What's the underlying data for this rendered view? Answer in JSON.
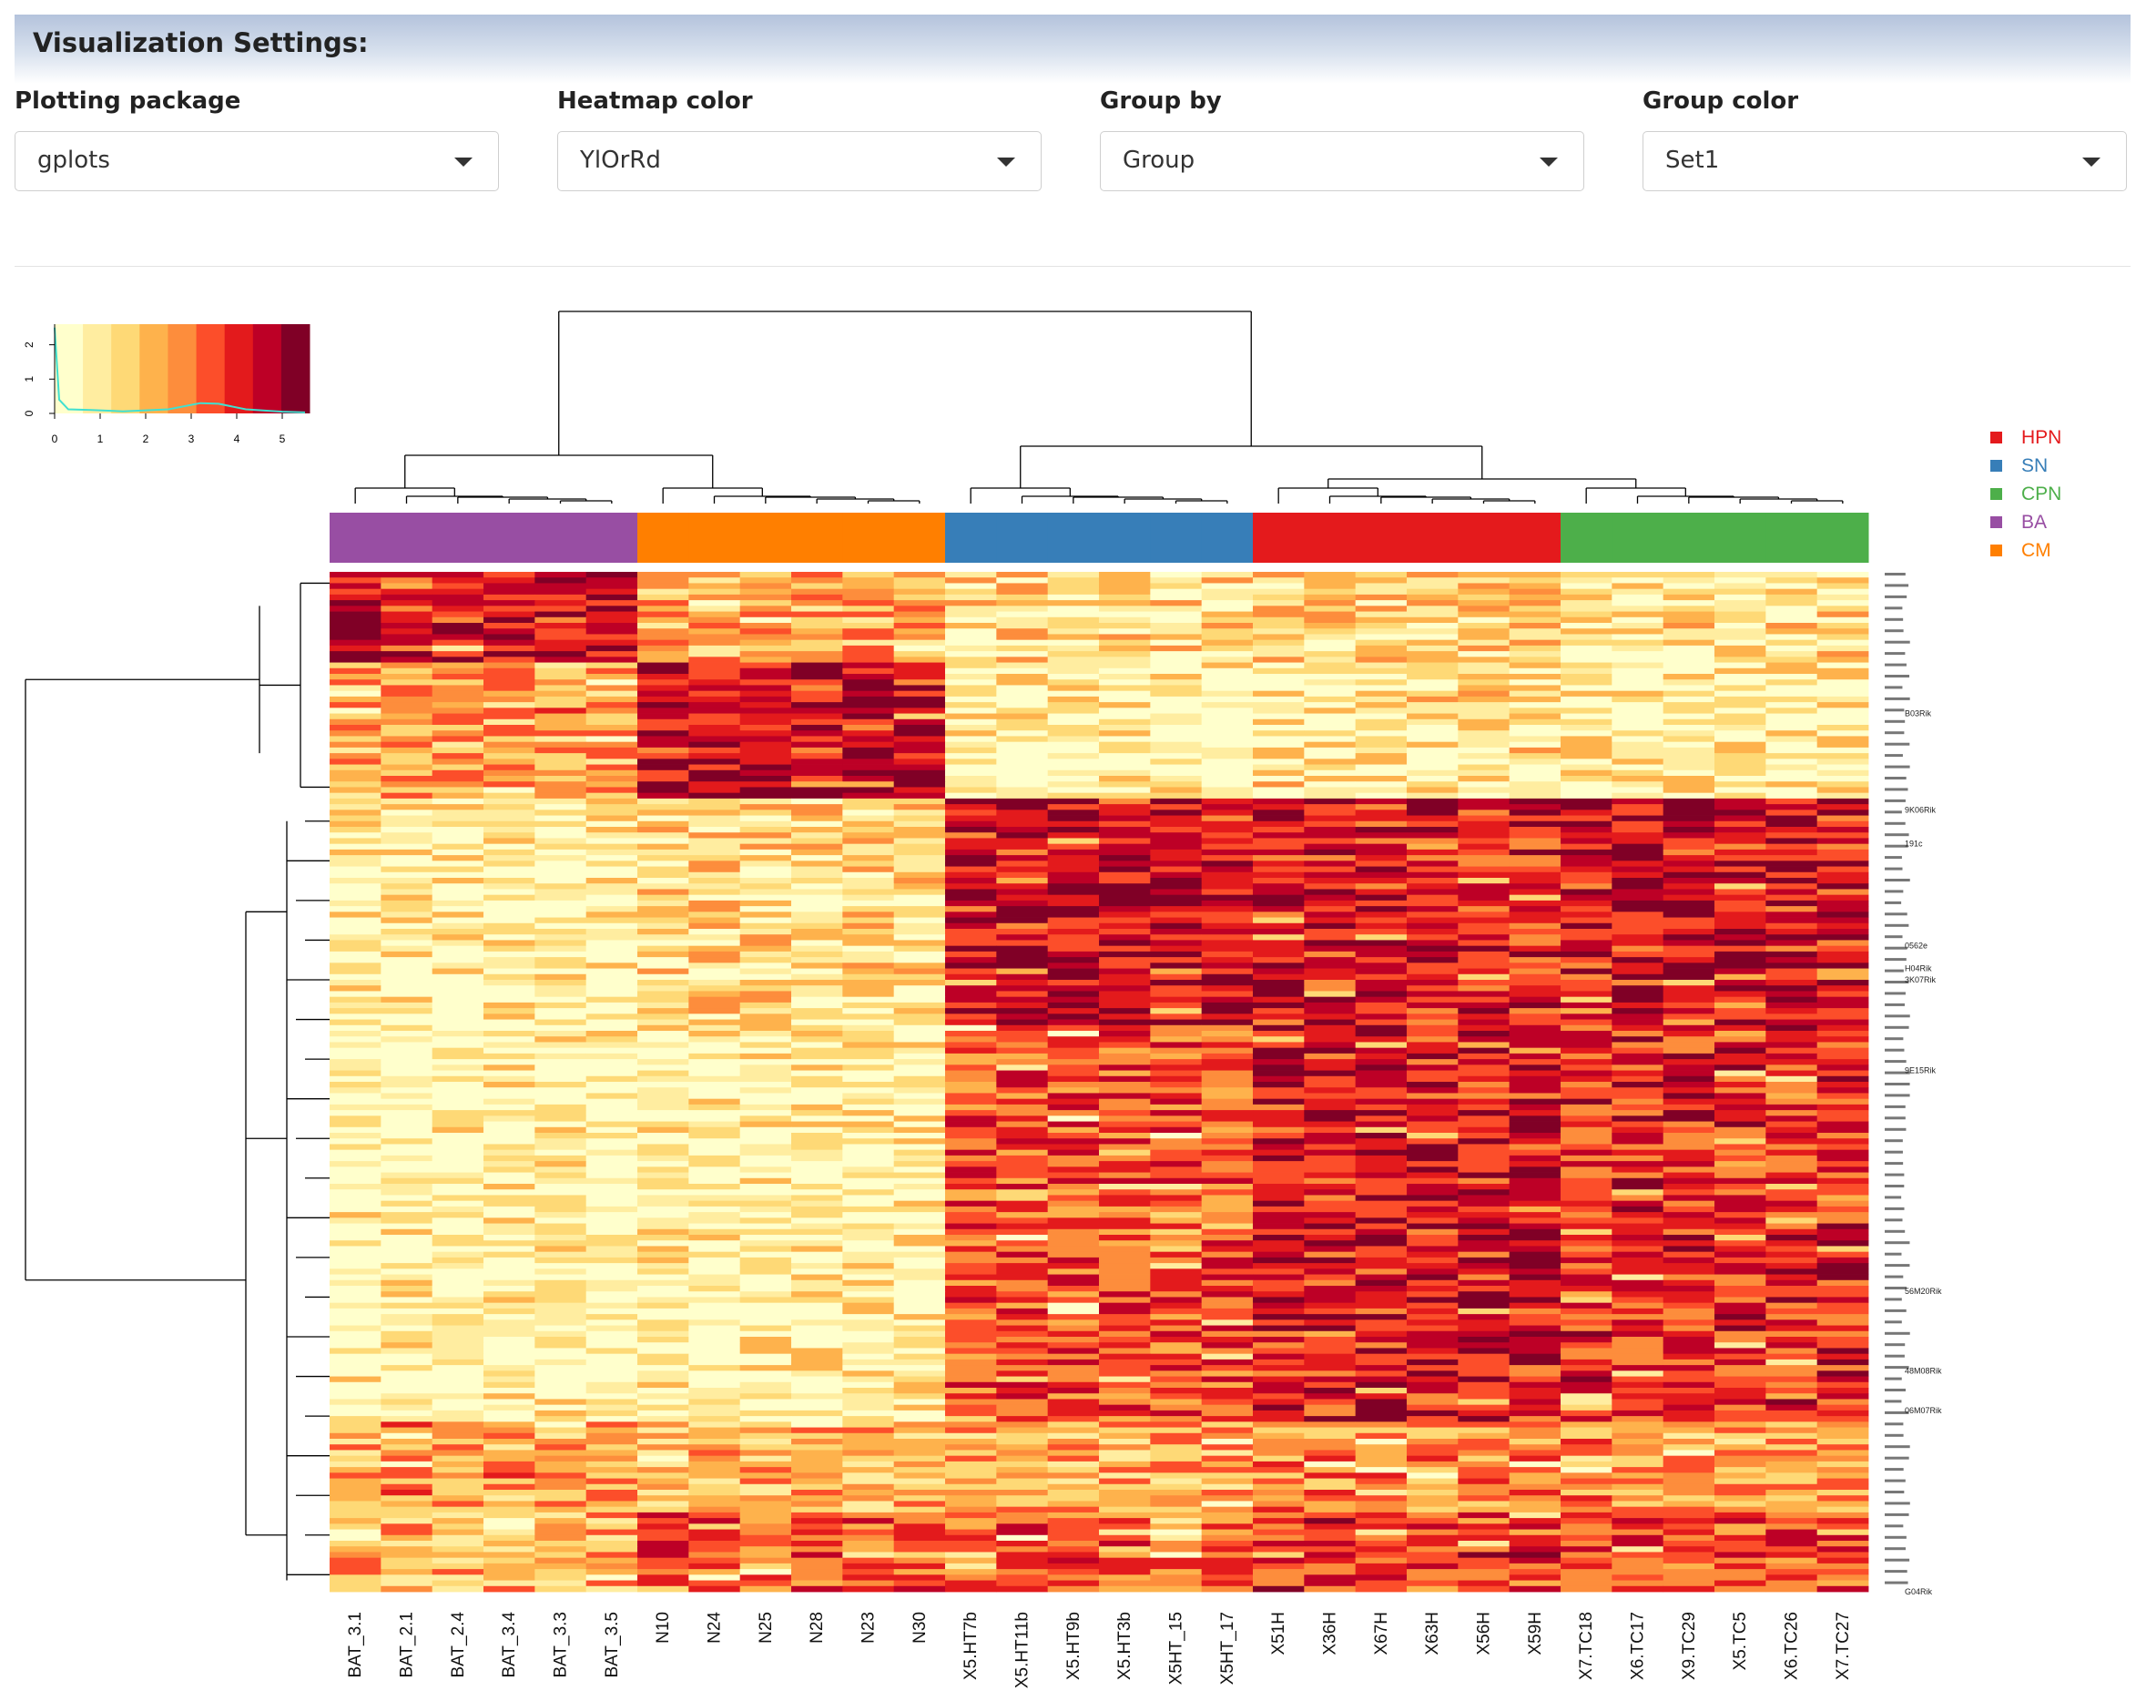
{
  "settings": {
    "title": "Visualization Settings:",
    "controls": [
      {
        "label": "Plotting package",
        "value": "gplots"
      },
      {
        "label": "Heatmap color",
        "value": "YlOrRd"
      },
      {
        "label": "Group by",
        "value": "Group"
      },
      {
        "label": "Group color",
        "value": "Set1"
      }
    ]
  },
  "chart_data": {
    "type": "heatmap",
    "palette": [
      "#ffffcc",
      "#ffeda0",
      "#fed976",
      "#feb24c",
      "#fd8d3c",
      "#fc4e2a",
      "#e31a1c",
      "#bd0026",
      "#800026"
    ],
    "color_key": {
      "x_ticks": [
        "0",
        "1",
        "2",
        "3",
        "4",
        "5"
      ],
      "y_ticks": [
        "0",
        "1",
        "2"
      ],
      "xlim": [
        0,
        5.6
      ],
      "ylim": [
        0,
        2.6
      ],
      "density_line_color": "#40e0d0"
    },
    "columns": [
      "BAT_3.1",
      "BAT_2.1",
      "BAT_2.4",
      "BAT_3.4",
      "BAT_3.3",
      "BAT_3.5",
      "N10",
      "N24",
      "N25",
      "N28",
      "N23",
      "N30",
      "X5.HT7b",
      "X5.HT11b",
      "X5.HT9b",
      "X5.HT3b",
      "X5HT_15",
      "X5HT_17",
      "X51H",
      "X36H",
      "X67H",
      "X63H",
      "X56H",
      "X59H",
      "X7.TC18",
      "X6.TC17",
      "X9.TC29",
      "X5.TC5",
      "X6.TC26",
      "X7.TC27"
    ],
    "column_groups": [
      "BA",
      "BA",
      "BA",
      "BA",
      "BA",
      "BA",
      "CM",
      "CM",
      "CM",
      "CM",
      "CM",
      "CM",
      "SN",
      "SN",
      "SN",
      "SN",
      "SN",
      "SN",
      "HPN",
      "HPN",
      "HPN",
      "HPN",
      "HPN",
      "HPN",
      "CPN",
      "CPN",
      "CPN",
      "CPN",
      "CPN",
      "CPN"
    ],
    "legend": [
      {
        "name": "HPN",
        "color": "#e41a1c"
      },
      {
        "name": "SN",
        "color": "#377eb8"
      },
      {
        "name": "CPN",
        "color": "#4daf4a"
      },
      {
        "name": "BA",
        "color": "#984ea3"
      },
      {
        "name": "CM",
        "color": "#ff7f00"
      }
    ],
    "row_label_samples": [
      "9K06Rik",
      "191c",
      "0562e",
      "H04Rik",
      "3K07Rik",
      "9E15Rik",
      "56M20Rik",
      "48M08Rik",
      "06M07Rik",
      "G04Rik",
      "B03Rik"
    ],
    "row_blocks": [
      {
        "rows": 16,
        "levels": {
          "BA": 6.5,
          "CM": 3.2,
          "SN": 1.8,
          "HPN": 2.4,
          "CPN": 1.6
        }
      },
      {
        "rows": 24,
        "levels": {
          "BA": 3.5,
          "CM": 6.8,
          "SN": 0.8,
          "HPN": 1.5,
          "CPN": 1.0
        }
      },
      {
        "rows": 40,
        "levels": {
          "BA": 0.9,
          "CM": 2.0,
          "SN": 6.6,
          "HPN": 6.2,
          "CPN": 6.5
        }
      },
      {
        "rows": 70,
        "levels": {
          "BA": 0.6,
          "CM": 0.9,
          "SN": 5.0,
          "HPN": 6.4,
          "CPN": 5.8
        }
      },
      {
        "rows": 16,
        "levels": {
          "BA": 3.5,
          "CM": 2.8,
          "SN": 3.2,
          "HPN": 3.8,
          "CPN": 3.5
        }
      },
      {
        "rows": 14,
        "levels": {
          "BA": 3.0,
          "CM": 5.0,
          "SN": 4.6,
          "HPN": 5.5,
          "CPN": 5.2
        }
      }
    ]
  }
}
